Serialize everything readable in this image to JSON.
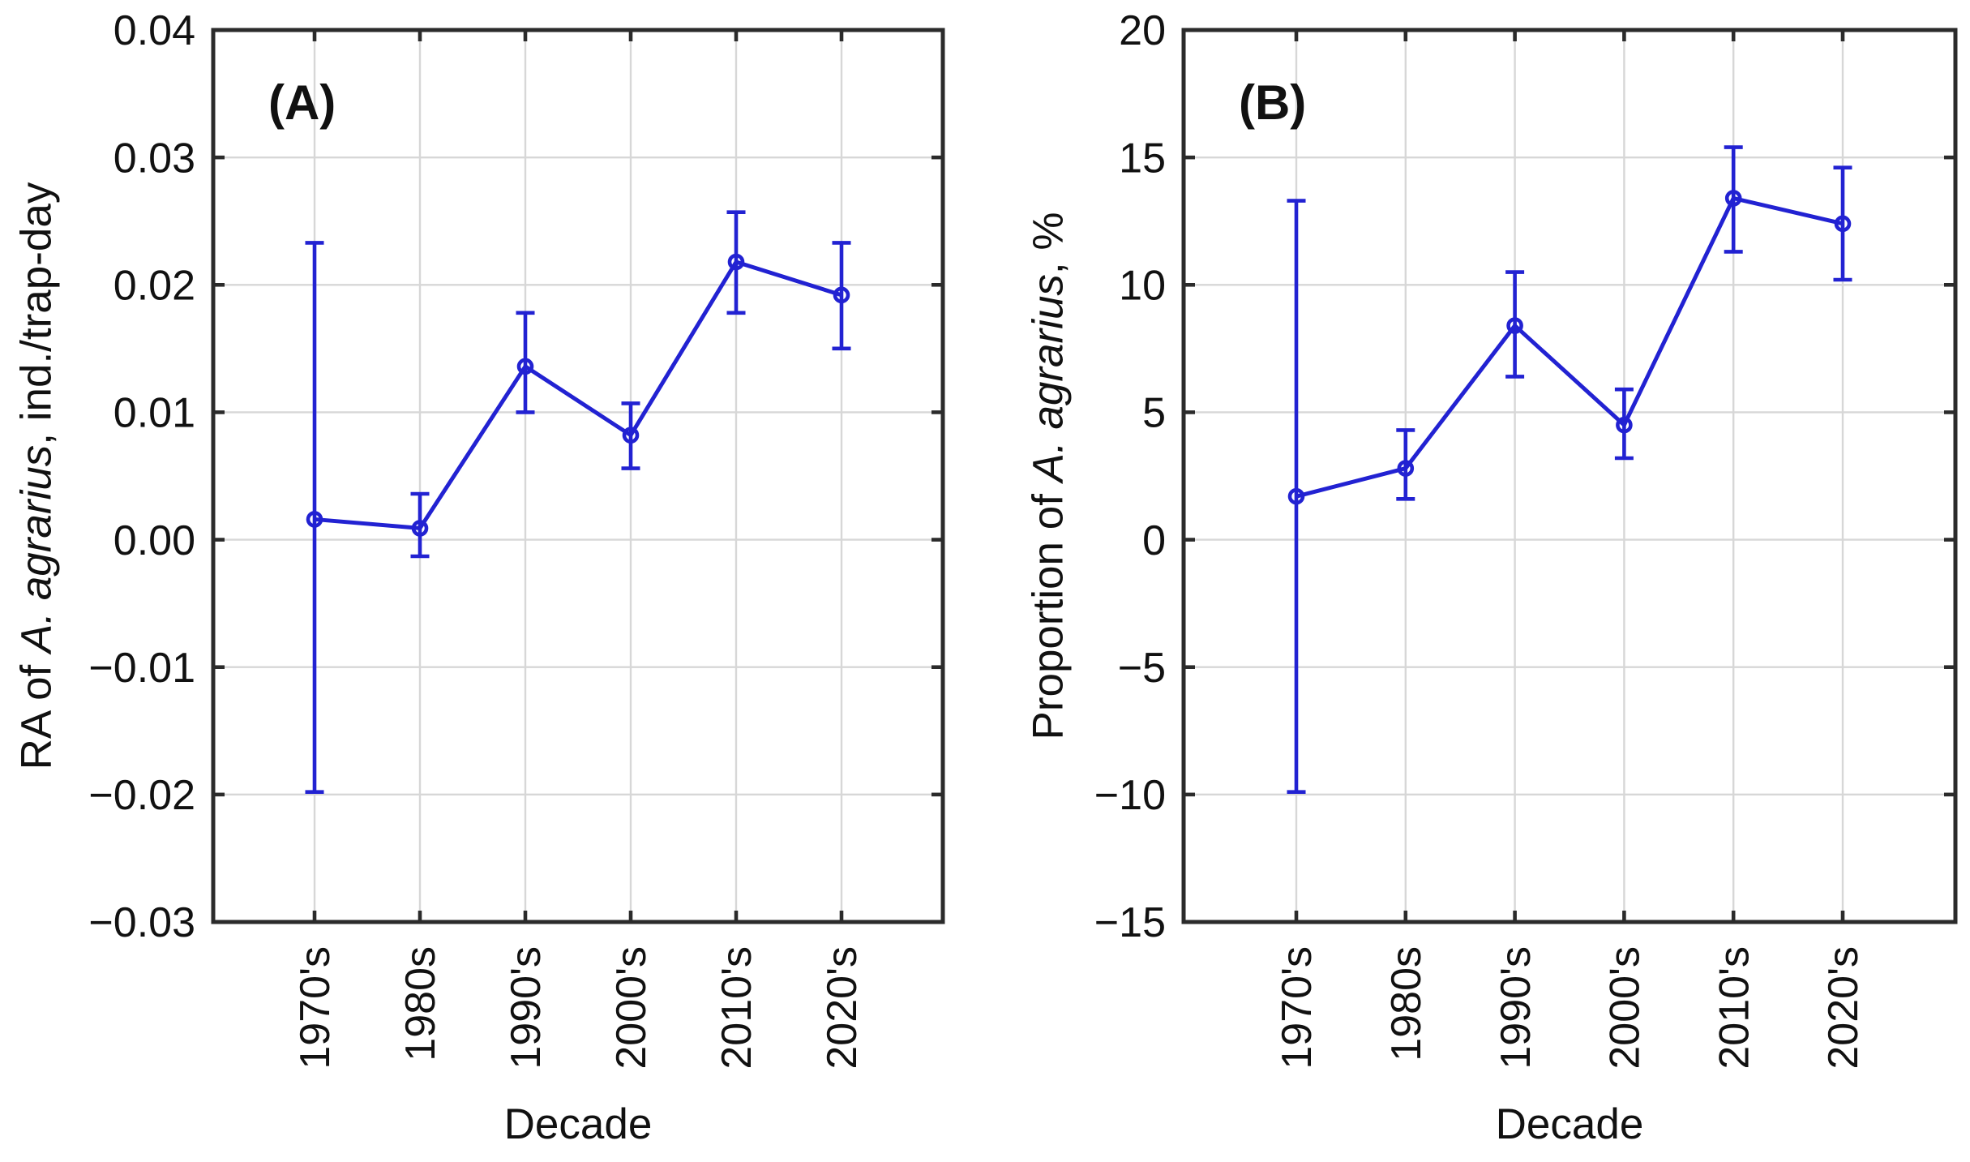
{
  "figure": {
    "background": "#ffffff",
    "axis_color": "#2b2b2b",
    "grid_color": "#d7d7d7",
    "text_color": "#111111",
    "series_color": "#2222d2",
    "xlabel": "Decade"
  },
  "chart_data": [
    {
      "type": "line",
      "panel_label": "(A)",
      "xlabel": "Decade",
      "ylabel": "RA of A. agrarius, ind./trap-day",
      "ylabel_parts": {
        "prefix": "RA of ",
        "italic": "A. agrarius",
        "suffix": ", ind./trap-day"
      },
      "categories": [
        "1970's",
        "1980s",
        "1990's",
        "2000's",
        "2010's",
        "2020's"
      ],
      "values": [
        0.0016,
        0.0009,
        0.0136,
        0.0082,
        0.0218,
        0.0192
      ],
      "err_low": [
        -0.0198,
        -0.0013,
        0.01,
        0.0056,
        0.0178,
        0.015
      ],
      "err_high": [
        0.0233,
        0.0036,
        0.0178,
        0.0107,
        0.0257,
        0.0233
      ],
      "ylim": [
        -0.03,
        0.04
      ],
      "yticks": [
        0.04,
        0.03,
        0.02,
        0.01,
        0,
        -0.01,
        -0.02,
        -0.03
      ],
      "ytick_labels": [
        "0.04",
        "0.03",
        "0.02",
        "0.01",
        "0.00",
        "−0.01",
        "−0.02",
        "−0.03"
      ],
      "grid": true,
      "legend": "none",
      "marker": "open-circle",
      "series_color": "#2222d2"
    },
    {
      "type": "line",
      "panel_label": "(B)",
      "xlabel": "Decade",
      "ylabel": "Proportion of A. agrarius, %",
      "ylabel_parts": {
        "prefix": "Proportion of ",
        "italic": "A. agrarius",
        "suffix": ", %"
      },
      "categories": [
        "1970's",
        "1980s",
        "1990's",
        "2000's",
        "2010's",
        "2020's"
      ],
      "values": [
        1.7,
        2.8,
        8.4,
        4.5,
        13.4,
        12.4
      ],
      "err_low": [
        -9.9,
        1.6,
        6.4,
        3.2,
        11.3,
        10.2
      ],
      "err_high": [
        13.3,
        4.3,
        10.5,
        5.9,
        15.4,
        14.6
      ],
      "ylim": [
        -15,
        20
      ],
      "yticks": [
        20,
        15,
        10,
        5,
        0,
        -5,
        -10,
        -15
      ],
      "ytick_labels": [
        "20",
        "15",
        "10",
        "5",
        "0",
        "−5",
        "−10",
        "−15"
      ],
      "grid": true,
      "legend": "none",
      "marker": "open-circle",
      "series_color": "#2222d2"
    }
  ]
}
